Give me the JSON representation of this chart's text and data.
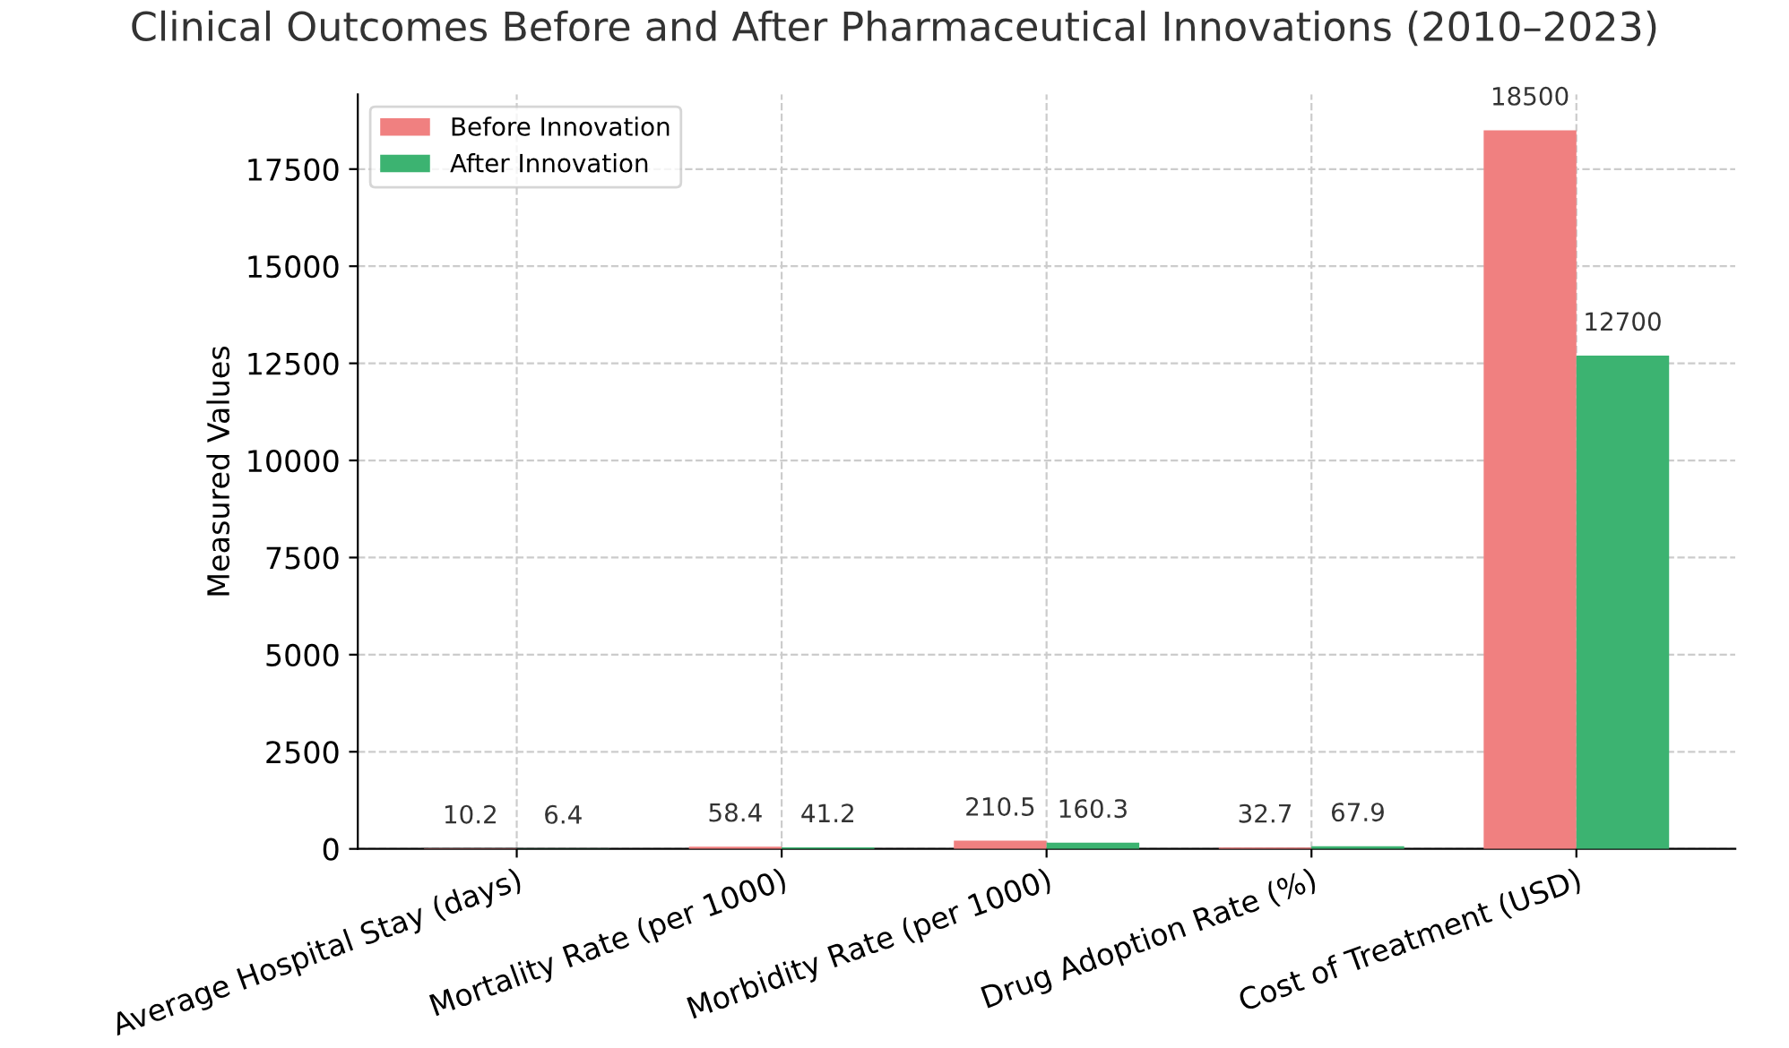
{
  "chart_data": {
    "type": "bar",
    "title": "Clinical Outcomes Before and After Pharmaceutical Innovations (2010–2023)",
    "ylabel": "Measured Values",
    "categories": [
      "Average Hospital Stay (days)",
      "Mortality Rate (per 1000)",
      "Morbidity Rate (per 1000)",
      "Drug Adoption Rate (%)",
      "Cost of Treatment (USD)"
    ],
    "series": [
      {
        "name": "Before Innovation",
        "color": "#f08080",
        "values": [
          10.2,
          58.4,
          210.5,
          32.7,
          18500
        ]
      },
      {
        "name": "After Innovation",
        "color": "#3cb371",
        "values": [
          6.4,
          41.2,
          160.3,
          67.9,
          12700
        ]
      }
    ],
    "ylim": [
      0,
      19425
    ],
    "yticks": [
      0,
      2500,
      5000,
      7500,
      10000,
      12500,
      15000,
      17500
    ],
    "grid": true,
    "legend": "top left",
    "data_labels": true
  }
}
